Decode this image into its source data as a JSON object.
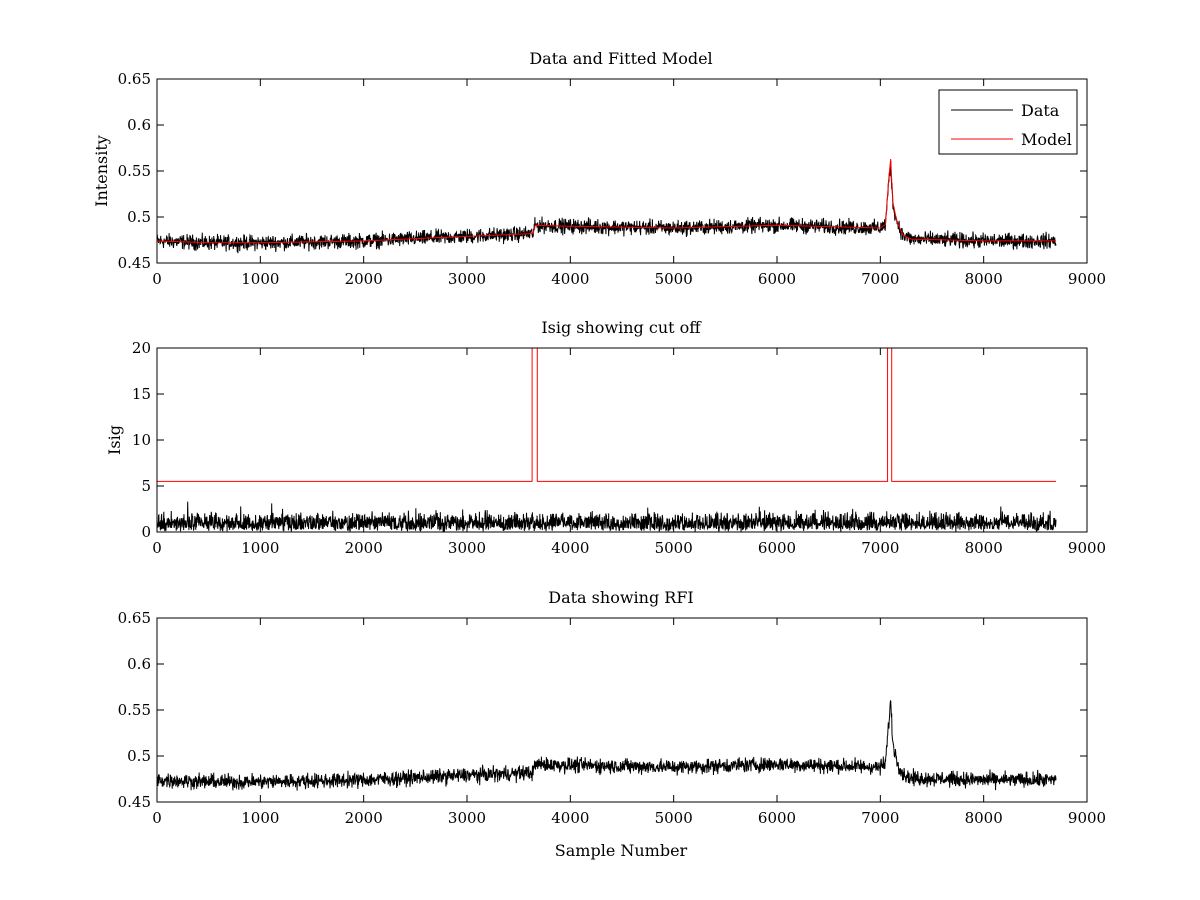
{
  "figure": {
    "background": "#ffffff"
  },
  "chart_data": [
    {
      "type": "line",
      "title": "Data and Fitted Model",
      "xlabel": "",
      "ylabel": "Intensity",
      "xlim": [
        0,
        9000
      ],
      "ylim": [
        0.45,
        0.65
      ],
      "xticks": [
        0,
        1000,
        2000,
        3000,
        4000,
        5000,
        6000,
        7000,
        8000,
        9000
      ],
      "yticks": [
        0.45,
        0.5,
        0.55,
        0.6,
        0.65
      ],
      "ytick_labels": [
        "0.45",
        "0.5",
        "0.55",
        "0.6",
        "0.65"
      ],
      "grid": false,
      "legend": {
        "position": "top-right",
        "entries": [
          "Data",
          "Model"
        ]
      },
      "series": [
        {
          "name": "Data",
          "color": "#000000",
          "kind": "noisy",
          "noise": 0.004,
          "x": [
            0,
            500,
            1000,
            2000,
            3000,
            3640,
            3660,
            4000,
            5000,
            6000,
            7000,
            7050,
            7080,
            7100,
            7120,
            7160,
            7220,
            7300,
            8000,
            8700
          ],
          "y": [
            0.474,
            0.472,
            0.472,
            0.474,
            0.479,
            0.482,
            0.491,
            0.49,
            0.488,
            0.491,
            0.488,
            0.492,
            0.535,
            0.56,
            0.515,
            0.495,
            0.48,
            0.476,
            0.474,
            0.474
          ]
        },
        {
          "name": "Model",
          "color": "#ff0000",
          "kind": "smooth",
          "x": [
            0,
            500,
            1000,
            2000,
            3000,
            3640,
            3660,
            4000,
            5000,
            6000,
            7000,
            7050,
            7080,
            7100,
            7120,
            7160,
            7220,
            7300,
            8000,
            8700
          ],
          "y": [
            0.474,
            0.472,
            0.472,
            0.474,
            0.479,
            0.482,
            0.491,
            0.49,
            0.488,
            0.491,
            0.488,
            0.492,
            0.54,
            0.563,
            0.517,
            0.495,
            0.48,
            0.476,
            0.474,
            0.474
          ]
        }
      ]
    },
    {
      "type": "line",
      "title": "Isig showing cut off",
      "xlabel": "",
      "ylabel": "Isig",
      "xlim": [
        0,
        9000
      ],
      "ylim": [
        0,
        20
      ],
      "xticks": [
        0,
        1000,
        2000,
        3000,
        4000,
        5000,
        6000,
        7000,
        8000,
        9000
      ],
      "yticks": [
        0,
        5,
        10,
        15,
        20
      ],
      "ytick_labels": [
        "0",
        "5",
        "10",
        "15",
        "20"
      ],
      "grid": false,
      "series": [
        {
          "color": "#000000",
          "kind": "spiky",
          "x": [
            0,
            8700
          ],
          "y": [
            1.3,
            1.3
          ],
          "spread": 1.4
        },
        {
          "color": "#ff0000",
          "kind": "step",
          "x": [
            0,
            3630,
            3630,
            3680,
            3680,
            7070,
            7070,
            7110,
            7110,
            8700
          ],
          "y": [
            5.5,
            5.5,
            20,
            20,
            5.5,
            5.5,
            20,
            20,
            5.5,
            5.5
          ]
        }
      ]
    },
    {
      "type": "line",
      "title": "Data showing RFI",
      "xlabel": "Sample Number",
      "ylabel": "",
      "xlim": [
        0,
        9000
      ],
      "ylim": [
        0.45,
        0.65
      ],
      "xticks": [
        0,
        1000,
        2000,
        3000,
        4000,
        5000,
        6000,
        7000,
        8000,
        9000
      ],
      "yticks": [
        0.45,
        0.5,
        0.55,
        0.6,
        0.65
      ],
      "ytick_labels": [
        "0.45",
        "0.5",
        "0.55",
        "0.6",
        "0.65"
      ],
      "grid": false,
      "series": [
        {
          "color": "#000000",
          "kind": "noisy",
          "noise": 0.004,
          "x": [
            0,
            500,
            1000,
            2000,
            3000,
            3640,
            3660,
            4000,
            5000,
            6000,
            7000,
            7050,
            7080,
            7100,
            7120,
            7160,
            7220,
            7300,
            8000,
            8700
          ],
          "y": [
            0.474,
            0.472,
            0.472,
            0.474,
            0.479,
            0.482,
            0.491,
            0.49,
            0.488,
            0.491,
            0.488,
            0.492,
            0.535,
            0.56,
            0.515,
            0.495,
            0.48,
            0.476,
            0.474,
            0.474
          ]
        }
      ]
    }
  ]
}
